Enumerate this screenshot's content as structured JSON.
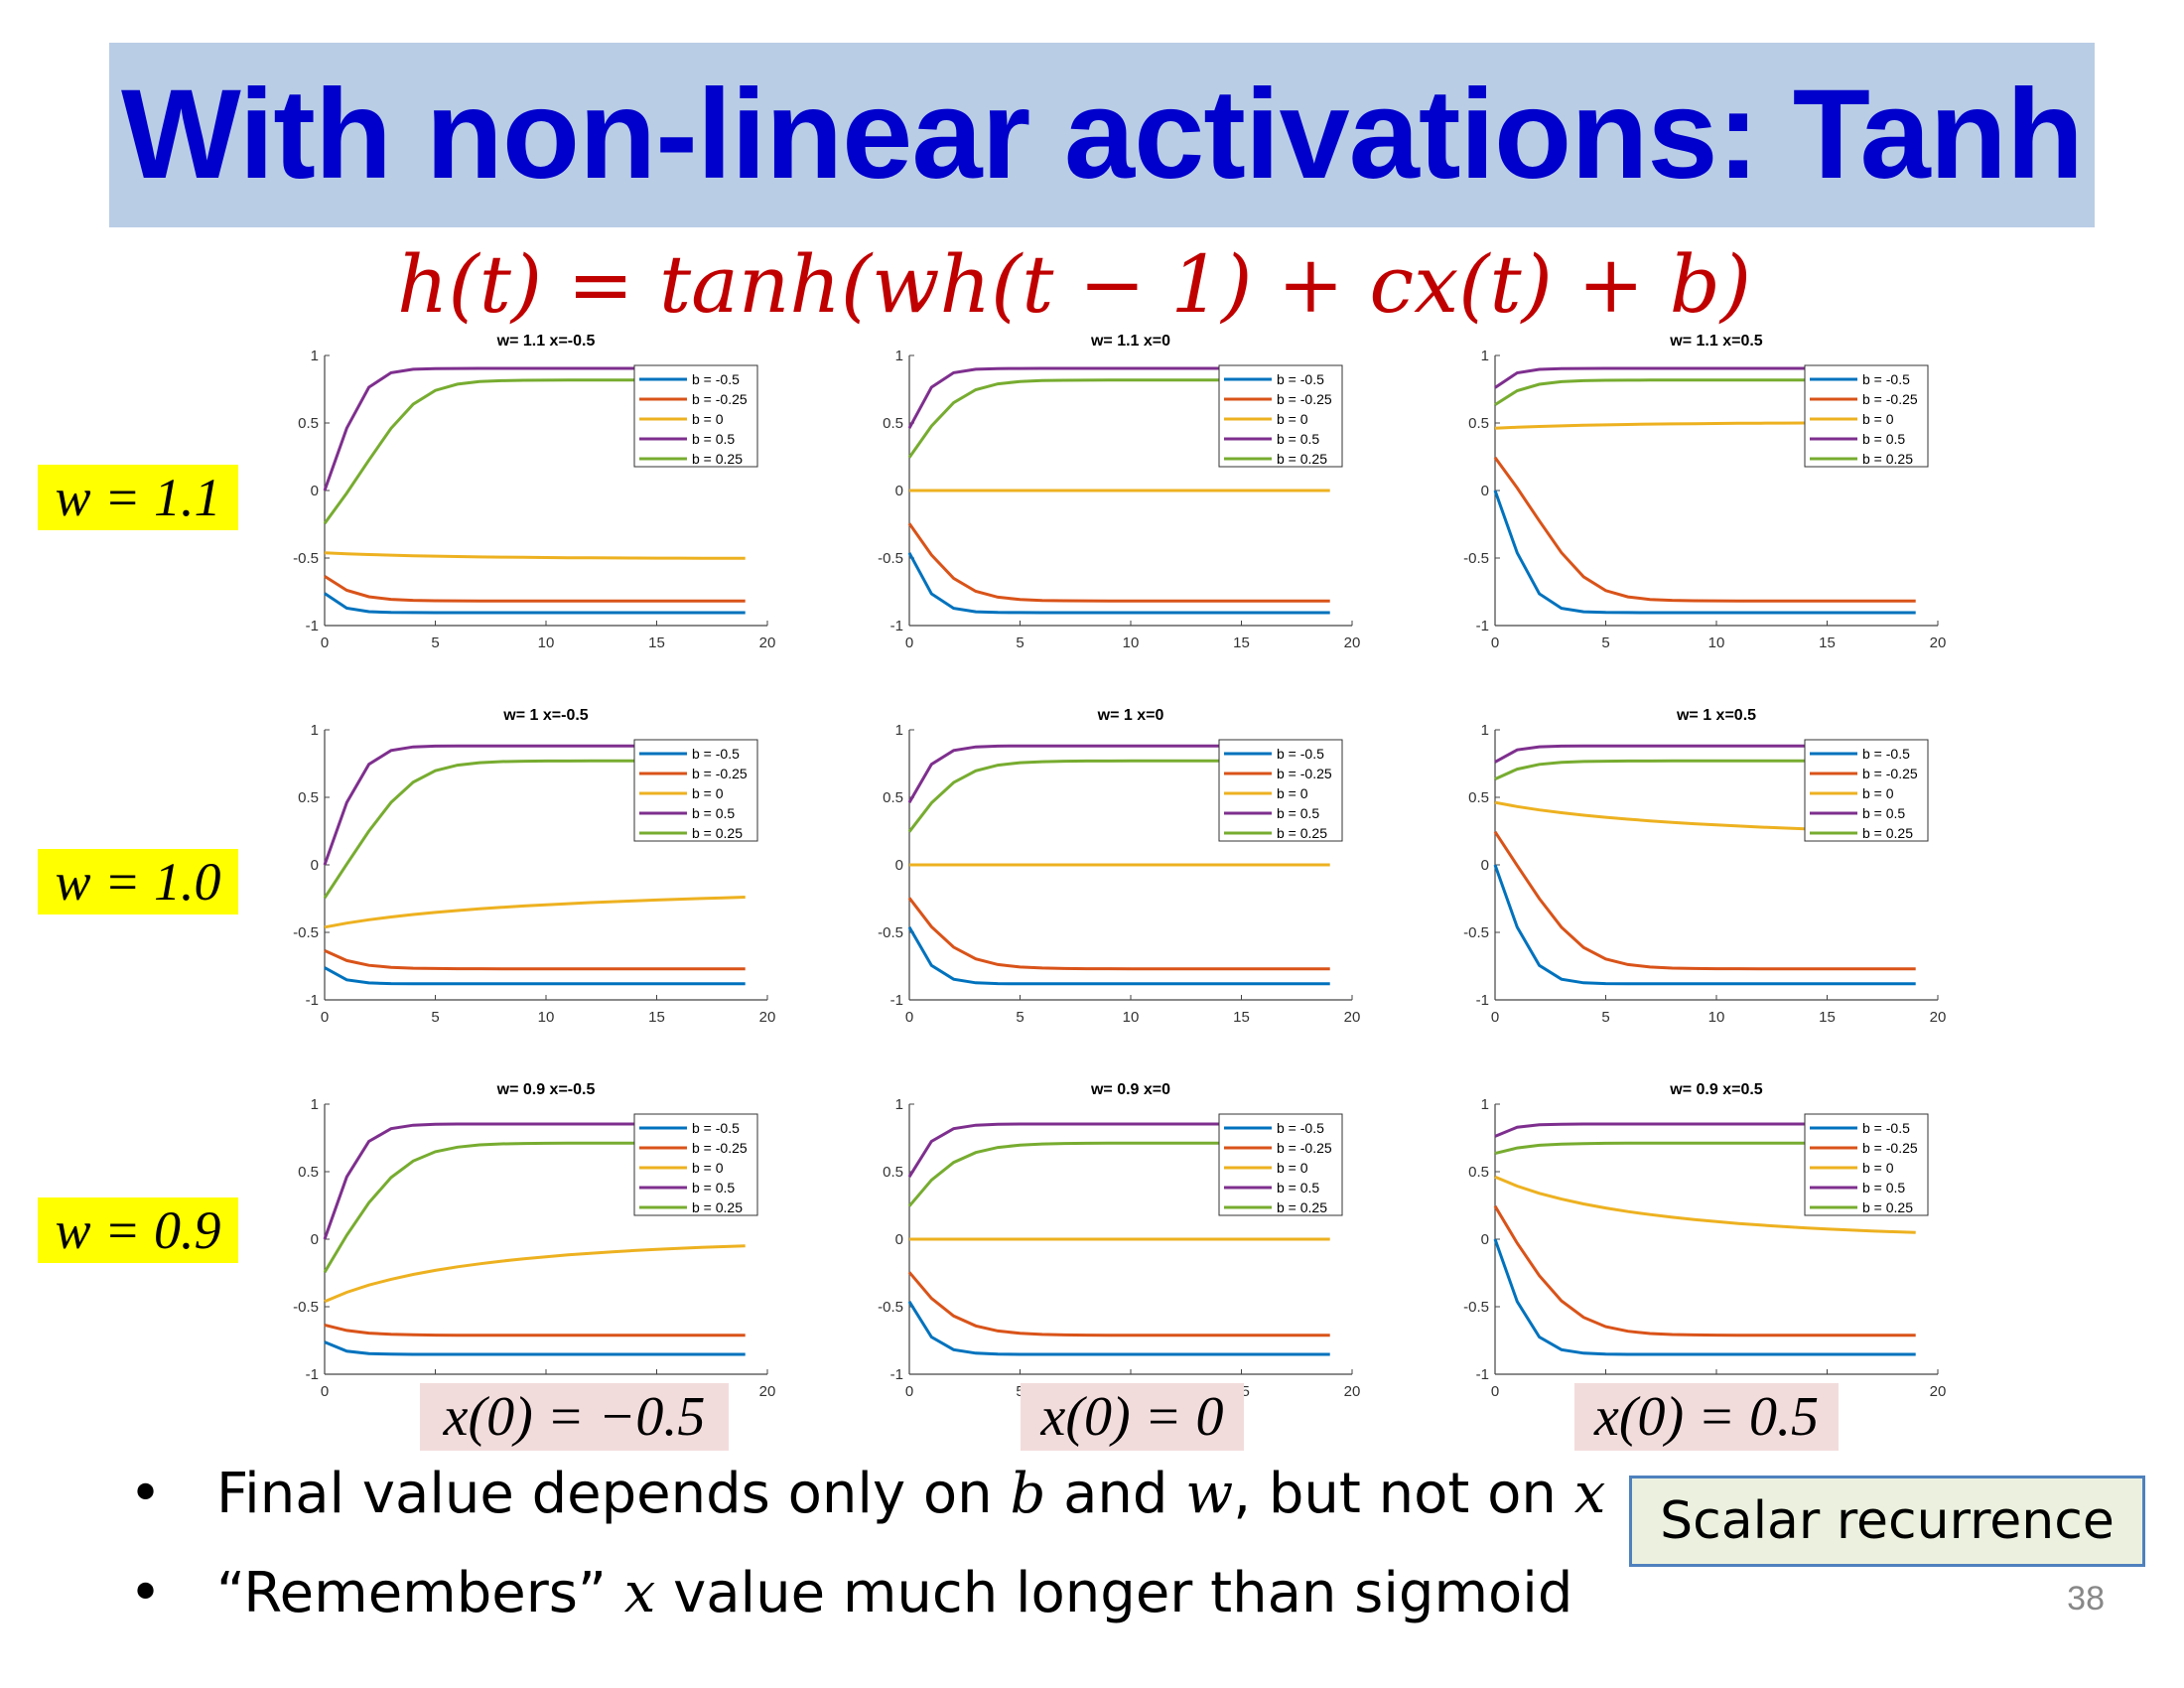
{
  "slide": {
    "title": "With non-linear activations: Tanh",
    "formula": "h(t) = tanh(wh(t − 1) + cx(t) + b)",
    "row_labels": [
      "w = 1.1",
      "w = 1.0",
      "w = 0.9"
    ],
    "column_labels": [
      "x(0) = −0.5",
      "x(0) = 0",
      "x(0) = 0.5"
    ],
    "bullets": [
      {
        "parts": [
          {
            "text": "Final value depends only on ",
            "math": false
          },
          {
            "text": "b",
            "math": true
          },
          {
            "text": " and ",
            "math": false
          },
          {
            "text": "w",
            "math": true
          },
          {
            "text": ", but not on ",
            "math": false
          },
          {
            "text": "x",
            "math": true
          }
        ]
      },
      {
        "parts": [
          {
            "text": "“Remembers” ",
            "math": false
          },
          {
            "text": "x",
            "math": true
          },
          {
            "text": " value much longer than sigmoid",
            "math": false
          }
        ]
      }
    ],
    "callout": "Scalar recurrence",
    "page_number": "38",
    "colors": {
      "title_text": "#0000cc",
      "title_bar": "#b9cde5",
      "formula": "#c00000",
      "row_label_bg": "#ffff00",
      "column_label_bg": "#f2dcdb",
      "callout_bg": "#ebf1de",
      "callout_border": "#4f81bd"
    }
  },
  "chart_data": [
    {
      "type": "line",
      "title": "w= 1.1 x=-0.5",
      "w": 1.1,
      "x0": -0.5
    },
    {
      "type": "line",
      "title": "w= 1.1 x=0",
      "w": 1.1,
      "x0": 0
    },
    {
      "type": "line",
      "title": "w= 1.1 x=0.5",
      "w": 1.1,
      "x0": 0.5
    },
    {
      "type": "line",
      "title": "w= 1 x=-0.5",
      "w": 1.0,
      "x0": -0.5
    },
    {
      "type": "line",
      "title": "w= 1 x=0",
      "w": 1.0,
      "x0": 0
    },
    {
      "type": "line",
      "title": "w= 1 x=0.5",
      "w": 1.0,
      "x0": 0.5
    },
    {
      "type": "line",
      "title": "w= 0.9 x=-0.5",
      "w": 0.9,
      "x0": -0.5
    },
    {
      "type": "line",
      "title": "w= 0.9 x=0",
      "w": 0.9,
      "x0": 0
    },
    {
      "type": "line",
      "title": "w= 0.9 x=0.5",
      "w": 0.9,
      "x0": 0.5
    }
  ],
  "chart_common": {
    "xlim": [
      0,
      20
    ],
    "ylim": [
      -1,
      1
    ],
    "x_ticks": [
      0,
      5,
      10,
      15,
      20
    ],
    "y_ticks": [
      -1,
      -0.5,
      0,
      0.5,
      1
    ],
    "y_tick_labels": [
      "-1",
      "-0.5",
      "0",
      "0.5",
      "1"
    ],
    "legend_position": "top-right",
    "series": [
      {
        "name": "b = -0.5",
        "b": -0.5,
        "color": "#0072bd"
      },
      {
        "name": "b = -0.25",
        "b": -0.25,
        "color": "#d95319"
      },
      {
        "name": "b = 0",
        "b": 0,
        "color": "#edb120"
      },
      {
        "name": "b = 0.5",
        "b": 0.5,
        "color": "#7e2f8e"
      },
      {
        "name": "b = 0.25",
        "b": 0.25,
        "color": "#77ac30"
      }
    ],
    "t_values": [
      0,
      1,
      2,
      3,
      4,
      5,
      6,
      7,
      8,
      9,
      10,
      11,
      12,
      13,
      14,
      15,
      16,
      17,
      18,
      19
    ]
  }
}
